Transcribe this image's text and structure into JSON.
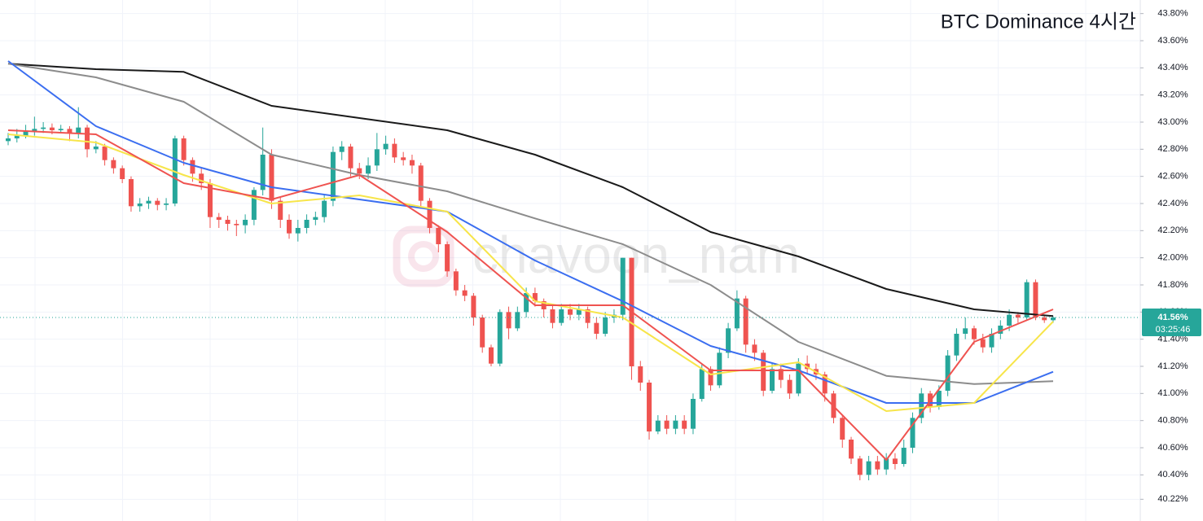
{
  "chart_data": {
    "type": "candlestick",
    "title": "BTC Dominance 4시간",
    "watermark": "chavoon_nam",
    "up_color": "#26a69a",
    "down_color": "#ef5350",
    "ylim": [
      40.06,
      43.9
    ],
    "yticks": [
      {
        "value": 43.8,
        "label": "43.80%"
      },
      {
        "value": 43.6,
        "label": "43.60%"
      },
      {
        "value": 43.4,
        "label": "43.40%"
      },
      {
        "value": 43.2,
        "label": "43.20%"
      },
      {
        "value": 43.0,
        "label": "43.00%"
      },
      {
        "value": 42.8,
        "label": "42.80%"
      },
      {
        "value": 42.6,
        "label": "42.60%"
      },
      {
        "value": 42.4,
        "label": "42.40%"
      },
      {
        "value": 42.2,
        "label": "42.20%"
      },
      {
        "value": 42.0,
        "label": "42.00%"
      },
      {
        "value": 41.8,
        "label": "41.80%"
      },
      {
        "value": 41.6,
        "label": "41.60%"
      },
      {
        "value": 41.4,
        "label": "41.40%"
      },
      {
        "value": 41.2,
        "label": "41.20%"
      },
      {
        "value": 41.0,
        "label": "41.00%"
      },
      {
        "value": 40.8,
        "label": "40.80%"
      },
      {
        "value": 40.6,
        "label": "40.60%"
      },
      {
        "value": 40.4,
        "label": "40.40%"
      },
      {
        "value": 40.22,
        "label": "40.22%"
      }
    ],
    "grid": true,
    "open": [
      42.86,
      42.88,
      42.9,
      42.93,
      42.95,
      42.96,
      42.94,
      42.95,
      42.92,
      42.96,
      42.8,
      42.82,
      42.72,
      42.66,
      42.58,
      42.38,
      42.4,
      42.42,
      42.39,
      42.4,
      42.88,
      42.72,
      42.62,
      42.55,
      42.3,
      42.28,
      42.25,
      42.24,
      42.28,
      42.5,
      42.76,
      42.42,
      42.28,
      42.18,
      42.22,
      42.28,
      42.3,
      42.42,
      42.78,
      42.82,
      42.66,
      42.62,
      42.68,
      42.8,
      42.84,
      42.74,
      42.72,
      42.68,
      42.42,
      42.22,
      42.1,
      41.9,
      41.76,
      41.72,
      41.56,
      41.34,
      41.22,
      41.6,
      41.48,
      41.6,
      41.74,
      41.68,
      41.62,
      41.52,
      41.62,
      41.58,
      41.62,
      41.52,
      41.44,
      41.56,
      41.58,
      42.0,
      41.2,
      41.08,
      40.72,
      40.8,
      40.74,
      40.8,
      40.74,
      40.96,
      41.18,
      41.06,
      41.3,
      41.48,
      41.7,
      41.36,
      41.3,
      41.02,
      41.18,
      41.1,
      41.0,
      41.22,
      41.18,
      41.14,
      41.0,
      40.82,
      40.66,
      40.52,
      40.4,
      40.5,
      40.44,
      40.52,
      40.48,
      40.6,
      40.82,
      41.0,
      40.9,
      41.02,
      41.28,
      41.44,
      41.48,
      41.4,
      41.34,
      41.44,
      41.5,
      41.58,
      41.56,
      41.82,
      41.56,
      41.54
    ],
    "high": [
      42.92,
      42.95,
      42.98,
      43.04,
      43.0,
      42.99,
      42.98,
      42.97,
      43.11,
      42.98,
      42.86,
      42.84,
      42.74,
      42.68,
      42.6,
      42.44,
      42.45,
      42.44,
      42.44,
      42.9,
      42.9,
      42.74,
      42.66,
      42.58,
      42.33,
      42.31,
      42.28,
      42.32,
      42.52,
      42.96,
      42.8,
      42.45,
      42.32,
      42.28,
      42.32,
      42.34,
      42.46,
      42.82,
      42.86,
      42.84,
      42.7,
      42.74,
      42.92,
      42.9,
      42.88,
      42.78,
      42.76,
      42.7,
      42.44,
      42.24,
      42.12,
      41.92,
      41.8,
      41.74,
      41.58,
      41.36,
      41.62,
      41.64,
      41.64,
      41.78,
      41.78,
      41.7,
      41.66,
      41.66,
      41.66,
      41.66,
      41.64,
      41.56,
      41.6,
      41.62,
      42.0,
      42.0,
      41.24,
      41.1,
      40.84,
      40.84,
      40.84,
      40.84,
      41.0,
      41.22,
      41.2,
      41.34,
      41.52,
      41.76,
      41.72,
      41.4,
      41.32,
      41.22,
      41.22,
      41.14,
      41.26,
      41.28,
      41.22,
      41.16,
      41.02,
      40.84,
      40.68,
      40.54,
      40.54,
      40.54,
      40.56,
      40.56,
      40.66,
      40.86,
      41.04,
      41.02,
      41.06,
      41.32,
      41.48,
      41.56,
      41.5,
      41.44,
      41.48,
      41.54,
      41.62,
      41.6,
      41.84,
      41.84,
      41.58,
      41.57
    ],
    "low": [
      42.83,
      42.85,
      42.88,
      42.9,
      42.92,
      42.91,
      42.92,
      42.86,
      42.88,
      42.74,
      42.77,
      42.68,
      42.62,
      42.55,
      42.34,
      42.34,
      42.36,
      42.35,
      42.35,
      42.38,
      42.68,
      42.56,
      42.5,
      42.22,
      42.22,
      42.2,
      42.16,
      42.18,
      42.24,
      42.46,
      42.36,
      42.22,
      42.14,
      42.12,
      42.18,
      42.24,
      42.26,
      42.38,
      42.72,
      42.6,
      42.58,
      42.58,
      42.64,
      42.76,
      42.7,
      42.68,
      42.62,
      42.38,
      42.18,
      42.04,
      41.86,
      41.72,
      41.68,
      41.5,
      41.3,
      41.2,
      41.2,
      41.4,
      41.46,
      41.56,
      41.64,
      41.56,
      41.48,
      41.5,
      41.54,
      41.54,
      41.48,
      41.4,
      41.42,
      41.52,
      41.54,
      41.1,
      41.02,
      40.66,
      40.7,
      40.7,
      40.7,
      40.7,
      40.7,
      40.94,
      41.02,
      41.04,
      41.26,
      41.46,
      41.3,
      41.24,
      40.98,
      41.0,
      41.04,
      40.96,
      40.98,
      41.14,
      41.1,
      40.94,
      40.78,
      40.6,
      40.48,
      40.36,
      40.36,
      40.4,
      40.4,
      40.44,
      40.46,
      40.56,
      40.78,
      40.86,
      40.88,
      40.98,
      41.24,
      41.4,
      41.36,
      41.3,
      41.3,
      41.4,
      41.46,
      41.52,
      41.54,
      41.54,
      41.52,
      41.52
    ],
    "close": [
      42.88,
      42.9,
      42.93,
      42.95,
      42.96,
      42.94,
      42.95,
      42.92,
      42.96,
      42.8,
      42.82,
      42.72,
      42.66,
      42.58,
      42.38,
      42.4,
      42.42,
      42.39,
      42.4,
      42.88,
      42.72,
      42.62,
      42.55,
      42.3,
      42.28,
      42.25,
      42.24,
      42.28,
      42.5,
      42.76,
      42.42,
      42.28,
      42.18,
      42.22,
      42.28,
      42.3,
      42.42,
      42.78,
      42.82,
      42.66,
      42.62,
      42.68,
      42.8,
      42.84,
      42.74,
      42.72,
      42.68,
      42.42,
      42.22,
      42.1,
      41.9,
      41.76,
      41.72,
      41.56,
      41.34,
      41.22,
      41.6,
      41.48,
      41.6,
      41.74,
      41.68,
      41.62,
      41.52,
      41.62,
      41.58,
      41.62,
      41.52,
      41.44,
      41.56,
      41.58,
      42.0,
      41.2,
      41.08,
      40.72,
      40.8,
      40.74,
      40.8,
      40.74,
      40.96,
      41.18,
      41.06,
      41.3,
      41.48,
      41.7,
      41.36,
      41.3,
      41.02,
      41.18,
      41.1,
      41.0,
      41.22,
      41.18,
      41.14,
      41.0,
      40.82,
      40.66,
      40.52,
      40.4,
      40.5,
      40.44,
      40.52,
      40.48,
      40.6,
      40.82,
      41.0,
      40.9,
      41.02,
      41.28,
      41.44,
      41.48,
      41.4,
      41.34,
      41.44,
      41.5,
      41.58,
      41.56,
      41.82,
      41.56,
      41.54,
      41.56
    ],
    "moving_averages": [
      {
        "color": "#1a1a1a",
        "x": [
          0,
          10,
          20,
          30,
          40,
          50,
          60,
          70,
          80,
          90,
          100,
          110,
          119
        ],
        "values": [
          43.43,
          43.39,
          43.37,
          43.12,
          43.03,
          42.94,
          42.76,
          42.52,
          42.19,
          42.01,
          41.77,
          41.62,
          41.57
        ]
      },
      {
        "color": "#8c8c8c",
        "x": [
          0,
          10,
          20,
          30,
          40,
          50,
          60,
          70,
          80,
          90,
          100,
          110,
          119
        ],
        "values": [
          43.43,
          43.33,
          43.15,
          42.76,
          42.61,
          42.49,
          42.29,
          42.1,
          41.8,
          41.38,
          41.13,
          41.07,
          41.09
        ]
      },
      {
        "color": "#3b6ef0",
        "x": [
          0,
          10,
          20,
          30,
          40,
          50,
          60,
          70,
          80,
          90,
          100,
          110,
          119
        ],
        "values": [
          43.45,
          42.97,
          42.7,
          42.52,
          42.43,
          42.34,
          41.98,
          41.68,
          41.35,
          41.17,
          40.93,
          40.93,
          41.16
        ]
      },
      {
        "color": "#f7e54a",
        "x": [
          0,
          10,
          20,
          30,
          40,
          50,
          60,
          70,
          80,
          90,
          100,
          110,
          119
        ],
        "values": [
          42.91,
          42.85,
          42.61,
          42.4,
          42.46,
          42.34,
          41.68,
          41.56,
          41.14,
          41.23,
          40.87,
          40.93,
          41.53
        ]
      },
      {
        "color": "#ef5350",
        "x": [
          0,
          10,
          20,
          30,
          40,
          50,
          60,
          70,
          80,
          90,
          100,
          110,
          119
        ],
        "values": [
          42.94,
          42.91,
          42.55,
          42.43,
          42.61,
          42.19,
          41.65,
          41.65,
          41.17,
          41.17,
          40.51,
          41.38,
          41.62
        ]
      }
    ],
    "last_price": {
      "value": 41.56,
      "label": "41.56%"
    },
    "countdown": "03:25:46"
  }
}
